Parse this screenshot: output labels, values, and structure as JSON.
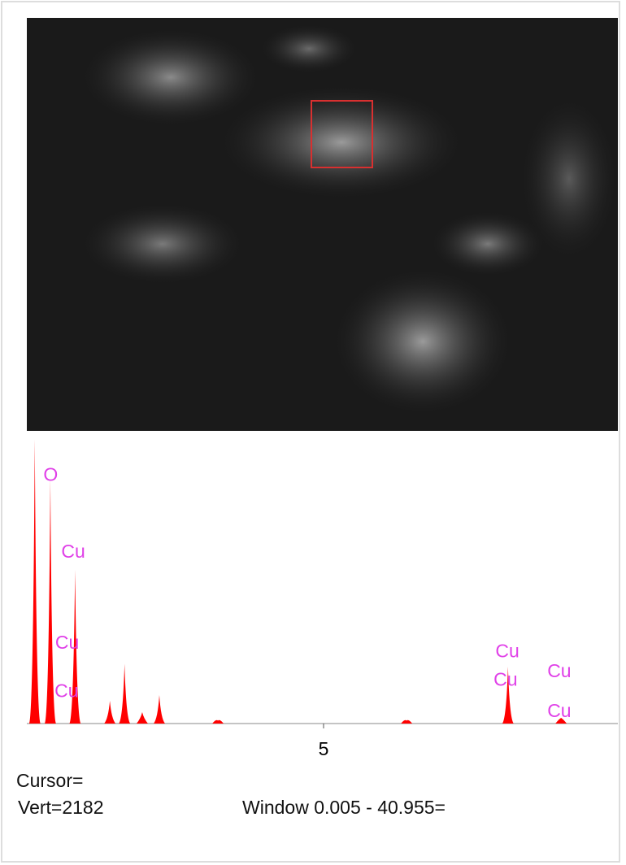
{
  "chart_data": {
    "type": "spectrum",
    "color": "#ff0000",
    "x": [
      0.27,
      0.525,
      0.93,
      1.5,
      1.74,
      2.03,
      2.31,
      3.27,
      6.36,
      8.02,
      8.89
    ],
    "values": [
      100,
      86,
      54,
      8,
      21,
      4,
      10,
      1,
      1,
      20,
      2
    ],
    "xlim": [
      0.14,
      9.82
    ],
    "ylim": [
      0,
      100
    ],
    "xticks": [
      5
    ],
    "annotations": [
      {
        "text": "O",
        "x": 0.53,
        "y": 87
      },
      {
        "text": "Cu",
        "x": 0.9,
        "y": 60
      },
      {
        "text": "Cu",
        "x": 0.8,
        "y": 28
      },
      {
        "text": "Cu",
        "x": 0.79,
        "y": 11
      },
      {
        "text": "Cu",
        "x": 8.01,
        "y": 25
      },
      {
        "text": "Cu",
        "x": 7.98,
        "y": 15
      },
      {
        "text": "Cu",
        "x": 8.86,
        "y": 18
      },
      {
        "text": "Cu",
        "x": 8.86,
        "y": 4
      }
    ]
  },
  "status": {
    "cursor": "Cursor=",
    "vert": "Vert=2182",
    "window": "Window 0.005 - 40.955="
  }
}
